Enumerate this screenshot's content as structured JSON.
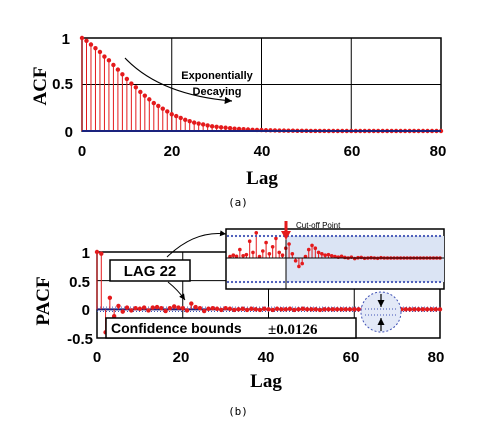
{
  "colors": {
    "stem": "#e41a1c",
    "marker": "#e41a1c",
    "baseline": "#1a237e",
    "grid": "#000000",
    "inset_fill": "#dbe4f4",
    "bound_dots": "#3f51b5"
  },
  "chart_data": [
    {
      "type": "stem",
      "caption": "(a)",
      "xlabel": "Lag",
      "ylabel": "ACF",
      "xlim": [
        0,
        80
      ],
      "ylim": [
        0,
        1
      ],
      "xticks": [
        "0",
        "20",
        "40",
        "60",
        "80"
      ],
      "yticks": [
        "0",
        "0.5",
        "1"
      ],
      "grid": true,
      "annotation": [
        "Exponentially",
        "Decaying"
      ],
      "x": [
        0,
        1,
        2,
        3,
        4,
        5,
        6,
        7,
        8,
        9,
        10,
        11,
        12,
        13,
        14,
        15,
        16,
        17,
        18,
        19,
        20,
        21,
        22,
        23,
        24,
        25,
        26,
        27,
        28,
        29,
        30,
        31,
        32,
        33,
        34,
        35,
        36,
        37,
        38,
        39,
        40,
        41,
        42,
        43,
        44,
        45,
        46,
        47,
        48,
        49,
        50,
        51,
        52,
        53,
        54,
        55,
        56,
        57,
        58,
        59,
        60,
        61,
        62,
        63,
        64,
        65,
        66,
        67,
        68,
        69,
        70,
        71,
        72,
        73,
        74,
        75,
        76,
        77,
        78,
        79,
        80
      ],
      "values": [
        1.0,
        0.97,
        0.93,
        0.89,
        0.85,
        0.8,
        0.76,
        0.71,
        0.66,
        0.61,
        0.56,
        0.51,
        0.47,
        0.42,
        0.38,
        0.34,
        0.3,
        0.27,
        0.24,
        0.21,
        0.18,
        0.16,
        0.14,
        0.12,
        0.105,
        0.09,
        0.08,
        0.07,
        0.06,
        0.05,
        0.045,
        0.04,
        0.035,
        0.03,
        0.025,
        0.022,
        0.019,
        0.016,
        0.013,
        0.011,
        0.01,
        0.008,
        0.007,
        0.006,
        0.005,
        0.004,
        0.003,
        0.003,
        0.002,
        0.002,
        0.002,
        0.001,
        0.001,
        0.001,
        0.001,
        0,
        0,
        0,
        0,
        0,
        0,
        0,
        0,
        0,
        0,
        0,
        0,
        0,
        0,
        0,
        0,
        0,
        0,
        0,
        0,
        0,
        0,
        0,
        0,
        0,
        0
      ]
    },
    {
      "type": "stem",
      "caption": "(b)",
      "xlabel": "Lag",
      "ylabel": "PACF",
      "xlim": [
        0,
        80
      ],
      "ylim": [
        -0.5,
        1
      ],
      "xticks": [
        "0",
        "20",
        "40",
        "60",
        "80"
      ],
      "yticks": [
        "-0.5",
        "0",
        "0.5",
        "1"
      ],
      "grid": true,
      "confidence_bound": 0.0126,
      "annotations": {
        "lag": "LAG 22",
        "bounds_label": "Confidence bounds",
        "bounds_value": "±0.0126",
        "cutoff": "Cut-off Point"
      },
      "x": [
        0,
        1,
        2,
        3,
        4,
        5,
        6,
        7,
        8,
        9,
        10,
        11,
        12,
        13,
        14,
        15,
        16,
        17,
        18,
        19,
        20,
        21,
        22,
        23,
        24,
        25,
        26,
        27,
        28,
        29,
        30,
        31,
        32,
        33,
        34,
        35,
        36,
        37,
        38,
        39,
        40,
        41,
        42,
        43,
        44,
        45,
        46,
        47,
        48,
        49,
        50,
        51,
        52,
        53,
        54,
        55,
        56,
        57,
        58,
        59,
        60,
        61,
        62,
        63,
        64,
        65,
        66,
        67,
        68,
        69,
        70,
        71,
        72,
        73,
        74,
        75,
        76,
        77,
        78,
        79,
        80
      ],
      "values": [
        1.0,
        0.97,
        -0.4,
        0.2,
        -0.12,
        0.06,
        -0.04,
        0.03,
        -0.02,
        0.02,
        0.01,
        0.03,
        -0.02,
        0.03,
        0.04,
        0.02,
        -0.03,
        0.02,
        0.05,
        0.03,
        0.02,
        -0.02,
        0.1,
        0.04,
        0.02,
        -0.03,
        0.01,
        0.02,
        0.01,
        -0.01,
        0.02,
        0.01,
        -0.01,
        0.0,
        0.01,
        -0.01,
        0.01,
        0.0,
        -0.01,
        0.01,
        0.0,
        -0.01,
        0.01,
        0.0,
        0.0,
        0.01,
        -0.01,
        0.0,
        0.01,
        0.0,
        0.0,
        0.0,
        -0.01,
        0.0,
        0.0,
        0.0,
        0.0,
        0.0,
        0.0,
        0.0,
        0.0,
        0.0,
        0.0,
        0.0,
        0.0,
        0.0,
        0.0,
        0.0,
        0.0,
        0.0,
        0.0,
        0.0,
        0.0,
        0.0,
        0.0,
        0.0,
        0.0,
        0.0,
        0.0,
        0.0,
        0.0
      ],
      "inset_values": [
        0.05,
        0.1,
        0.06,
        0.3,
        0.08,
        0.12,
        0.6,
        0.2,
        0.9,
        0.05,
        0.25,
        0.55,
        0.15,
        0.4,
        0.7,
        0.2,
        0.1,
        0.35,
        0.5,
        0.15,
        -0.1,
        -0.3,
        -0.2,
        0.05,
        0.3,
        0.45,
        0.35,
        0.2,
        0.15,
        0.1,
        0.12,
        0.08,
        0.05,
        0.03,
        0.06,
        0.02,
        0.0,
        0.03,
        -0.02,
        0.01,
        0.02,
        -0.01,
        0.0,
        0.01,
        0.0,
        -0.01,
        0.01,
        0.0,
        0.0,
        0.0,
        0.0,
        0.0,
        0.0,
        0.0,
        0.0,
        0.0,
        0.0,
        0.0,
        0.0,
        0.0,
        0.0,
        0.0,
        0.0,
        0.0,
        0.0
      ]
    }
  ]
}
